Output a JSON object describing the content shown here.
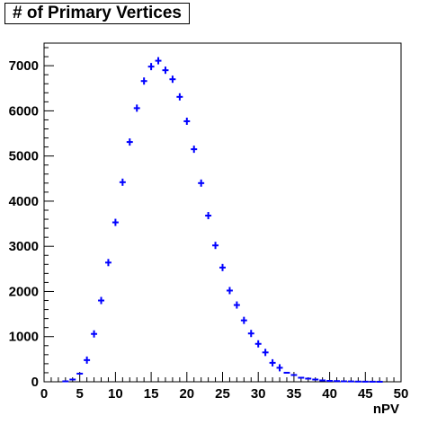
{
  "chart_data": {
    "type": "scatter",
    "title": "# of Primary Vertices",
    "xlabel": "nPV",
    "ylabel": "",
    "xlim": [
      0,
      50
    ],
    "ylim": [
      0,
      7500
    ],
    "x_ticks": [
      "0",
      "5",
      "10",
      "15",
      "20",
      "25",
      "30",
      "35",
      "40",
      "45",
      "50"
    ],
    "y_ticks": [
      "0",
      "1000",
      "2000",
      "3000",
      "4000",
      "5000",
      "6000",
      "7000"
    ],
    "grid": false,
    "legend": "none",
    "marker_color": "#0000ff",
    "points": [
      {
        "x": 3,
        "y": 10
      },
      {
        "x": 4,
        "y": 50
      },
      {
        "x": 5,
        "y": 180
      },
      {
        "x": 6,
        "y": 480
      },
      {
        "x": 7,
        "y": 1060
      },
      {
        "x": 8,
        "y": 1800
      },
      {
        "x": 9,
        "y": 2640
      },
      {
        "x": 10,
        "y": 3530
      },
      {
        "x": 11,
        "y": 4420
      },
      {
        "x": 12,
        "y": 5310
      },
      {
        "x": 13,
        "y": 6060
      },
      {
        "x": 14,
        "y": 6660
      },
      {
        "x": 15,
        "y": 6980
      },
      {
        "x": 16,
        "y": 7110
      },
      {
        "x": 17,
        "y": 6900
      },
      {
        "x": 18,
        "y": 6700
      },
      {
        "x": 19,
        "y": 6310
      },
      {
        "x": 20,
        "y": 5770
      },
      {
        "x": 21,
        "y": 5150
      },
      {
        "x": 22,
        "y": 4400
      },
      {
        "x": 23,
        "y": 3680
      },
      {
        "x": 24,
        "y": 3020
      },
      {
        "x": 25,
        "y": 2530
      },
      {
        "x": 26,
        "y": 2020
      },
      {
        "x": 27,
        "y": 1700
      },
      {
        "x": 28,
        "y": 1360
      },
      {
        "x": 29,
        "y": 1070
      },
      {
        "x": 30,
        "y": 840
      },
      {
        "x": 31,
        "y": 650
      },
      {
        "x": 32,
        "y": 420
      },
      {
        "x": 33,
        "y": 310
      },
      {
        "x": 34,
        "y": 200
      },
      {
        "x": 35,
        "y": 150
      },
      {
        "x": 36,
        "y": 90
      },
      {
        "x": 37,
        "y": 70
      },
      {
        "x": 38,
        "y": 50
      },
      {
        "x": 39,
        "y": 30
      },
      {
        "x": 40,
        "y": 20
      },
      {
        "x": 41,
        "y": 15
      },
      {
        "x": 42,
        "y": 10
      },
      {
        "x": 43,
        "y": 8
      },
      {
        "x": 44,
        "y": 5
      },
      {
        "x": 45,
        "y": 3
      },
      {
        "x": 46,
        "y": 2
      },
      {
        "x": 47,
        "y": 1
      }
    ]
  }
}
